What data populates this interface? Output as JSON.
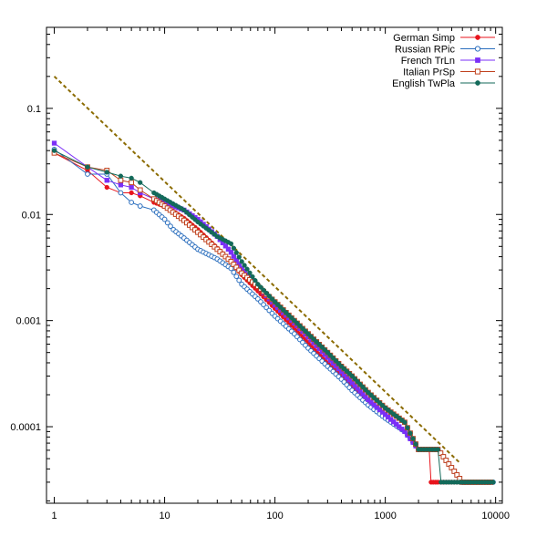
{
  "chart_data": {
    "type": "line",
    "title": "",
    "xlabel": "",
    "ylabel": "",
    "x_scale": "log",
    "y_scale": "log",
    "xlim": [
      0.85,
      11500
    ],
    "ylim": [
      1.9e-05,
      0.58
    ],
    "x_ticks": [
      1,
      10,
      100,
      1000,
      10000
    ],
    "x_tick_labels": [
      "1",
      "10",
      "100",
      "1000",
      "10000"
    ],
    "y_ticks": [
      0.0001,
      0.001,
      0.01,
      0.1
    ],
    "y_tick_labels": [
      "0.0001",
      "0.001",
      "0.01",
      "0.1"
    ],
    "grid": false,
    "legend_position": "top-right",
    "series": [
      {
        "name": "German Simp",
        "color": "#e8141c",
        "marker": "filled-circle",
        "x": [
          1,
          2,
          3,
          4,
          5,
          6,
          8,
          10,
          15,
          20,
          30,
          40,
          50,
          70,
          100,
          150,
          200,
          300,
          400,
          500,
          700,
          1000,
          1500,
          2000,
          2500,
          2600,
          3000,
          5000,
          9000
        ],
        "y": [
          0.038,
          0.026,
          0.018,
          0.016,
          0.016,
          0.015,
          0.013,
          0.012,
          0.0092,
          0.0072,
          0.0048,
          0.0036,
          0.0027,
          0.0019,
          0.0013,
          0.00085,
          0.00062,
          0.0004,
          0.0003,
          0.00024,
          0.00017,
          0.00012,
          9e-05,
          6.1e-05,
          6.1e-05,
          3e-05,
          3e-05,
          3e-05,
          3e-05
        ]
      },
      {
        "name": "Russian RPic",
        "color": "#2c6fbe",
        "marker": "open-circle",
        "x": [
          1,
          2,
          3,
          4,
          5,
          6,
          8,
          10,
          12,
          15,
          20,
          30,
          40,
          50,
          70,
          100,
          150,
          200,
          300,
          400,
          500,
          700,
          1000,
          1500,
          2000,
          3000,
          5000,
          9500
        ],
        "y": [
          0.041,
          0.024,
          0.024,
          0.016,
          0.013,
          0.012,
          0.011,
          0.009,
          0.0072,
          0.006,
          0.0047,
          0.0038,
          0.0031,
          0.0022,
          0.0016,
          0.0011,
          0.00075,
          0.00055,
          0.00037,
          0.00028,
          0.00022,
          0.00016,
          0.00012,
          9e-05,
          6.1e-05,
          6.1e-05,
          3e-05,
          3e-05
        ]
      },
      {
        "name": "French TrLn",
        "color": "#7b2ff7",
        "marker": "filled-square",
        "x": [
          1,
          2,
          3,
          4,
          5,
          6,
          8,
          10,
          15,
          20,
          30,
          40,
          50,
          70,
          100,
          150,
          200,
          300,
          400,
          500,
          700,
          1000,
          1500,
          2000,
          3000,
          5000,
          9000
        ],
        "y": [
          0.047,
          0.028,
          0.021,
          0.019,
          0.018,
          0.016,
          0.014,
          0.013,
          0.011,
          0.009,
          0.0062,
          0.0044,
          0.0031,
          0.0021,
          0.0014,
          0.00095,
          0.0007,
          0.00045,
          0.00033,
          0.00026,
          0.00018,
          0.00013,
          9e-05,
          6.1e-05,
          6.1e-05,
          3e-05,
          3e-05
        ]
      },
      {
        "name": "Italian PrSp",
        "color": "#c0421e",
        "marker": "open-square",
        "x": [
          1,
          2,
          3,
          4,
          5,
          6,
          8,
          10,
          15,
          20,
          30,
          40,
          50,
          70,
          100,
          150,
          200,
          300,
          400,
          500,
          700,
          1000,
          1500,
          2000,
          3000,
          5000,
          9000
        ],
        "y": [
          0.038,
          0.028,
          0.026,
          0.021,
          0.02,
          0.017,
          0.014,
          0.012,
          0.0088,
          0.0068,
          0.0047,
          0.0036,
          0.0028,
          0.0021,
          0.0015,
          0.001,
          0.00075,
          0.0005,
          0.00037,
          0.0003,
          0.00021,
          0.00015,
          0.00011,
          6.1e-05,
          6.1e-05,
          3e-05,
          3e-05
        ]
      },
      {
        "name": "English TwPla",
        "color": "#136a5a",
        "marker": "filled-circle",
        "x": [
          1,
          2,
          3,
          4,
          5,
          6,
          8,
          10,
          15,
          20,
          30,
          40,
          50,
          70,
          100,
          150,
          200,
          300,
          400,
          500,
          700,
          1000,
          1500,
          2000,
          3000,
          3200,
          5000,
          9500
        ],
        "y": [
          0.04,
          0.028,
          0.025,
          0.023,
          0.022,
          0.02,
          0.016,
          0.014,
          0.011,
          0.0085,
          0.0062,
          0.0053,
          0.0036,
          0.0022,
          0.0015,
          0.001,
          0.00075,
          0.0005,
          0.00037,
          0.0003,
          0.00021,
          0.00015,
          0.00011,
          6.1e-05,
          6.1e-05,
          3e-05,
          3e-05,
          3e-05
        ]
      }
    ],
    "reference_line": {
      "style": "dashed",
      "color": "#8b6b00",
      "x": [
        1,
        4700
      ],
      "y": [
        0.2,
        4.6e-05
      ]
    }
  }
}
